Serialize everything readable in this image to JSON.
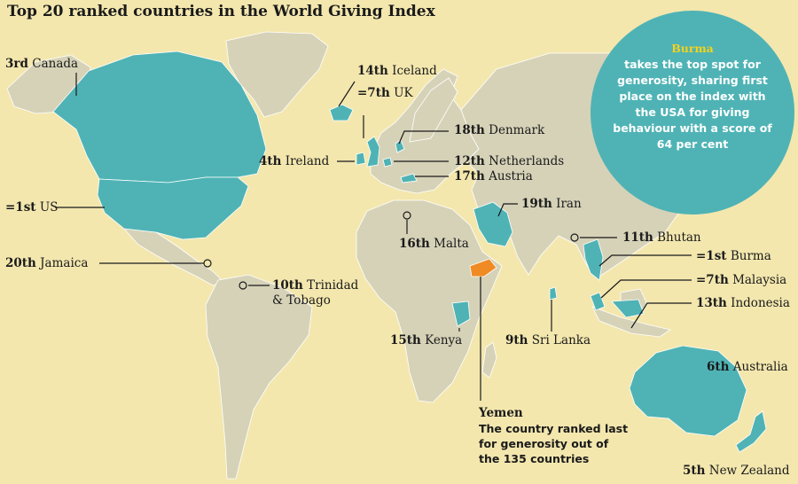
{
  "title": "Top 20 ranked countries in the World Giving Index",
  "colors": {
    "ocean": "#f3e7ae",
    "land": "#d6d2b8",
    "highlight": "#4fb3b5",
    "last": "#f08a24",
    "callout_text_accent": "#f5d21a"
  },
  "labels": [
    {
      "id": "canada",
      "rank": "3rd",
      "name": "Canada"
    },
    {
      "id": "iceland",
      "rank": "14th",
      "name": "Iceland"
    },
    {
      "id": "uk",
      "rank": "=7th",
      "name": "UK"
    },
    {
      "id": "denmark",
      "rank": "18th",
      "name": "Denmark"
    },
    {
      "id": "ireland",
      "rank": "4th",
      "name": "Ireland"
    },
    {
      "id": "netherlands",
      "rank": "12th",
      "name": "Netherlands"
    },
    {
      "id": "austria",
      "rank": "17th",
      "name": "Austria"
    },
    {
      "id": "us",
      "rank": "=1st",
      "name": "US"
    },
    {
      "id": "iran",
      "rank": "19th",
      "name": "Iran"
    },
    {
      "id": "malta",
      "rank": "16th",
      "name": "Malta"
    },
    {
      "id": "bhutan",
      "rank": "11th",
      "name": "Bhutan"
    },
    {
      "id": "burma",
      "rank": "=1st",
      "name": "Burma"
    },
    {
      "id": "jamaica",
      "rank": "20th",
      "name": "Jamaica"
    },
    {
      "id": "trinidad",
      "rank": "10th",
      "name": "Trinidad",
      "name2": "& Tobago"
    },
    {
      "id": "malaysia",
      "rank": "=7th",
      "name": "Malaysia"
    },
    {
      "id": "indonesia",
      "rank": "13th",
      "name": "Indonesia"
    },
    {
      "id": "kenya",
      "rank": "15th",
      "name": "Kenya"
    },
    {
      "id": "srilanka",
      "rank": "9th",
      "name": "Sri Lanka"
    },
    {
      "id": "australia",
      "rank": "6th",
      "name": "Australia"
    },
    {
      "id": "newzealand",
      "rank": "5th",
      "name": "New Zealand"
    }
  ],
  "callout": {
    "highlight": "Burma",
    "text": "takes the top spot for generosity, sharing first place on the index with the USA for giving behaviour with a score of 64 per cent"
  },
  "yemen": {
    "heading": "Yemen",
    "text": "The country ranked last for generosity out of the 135 countries"
  }
}
